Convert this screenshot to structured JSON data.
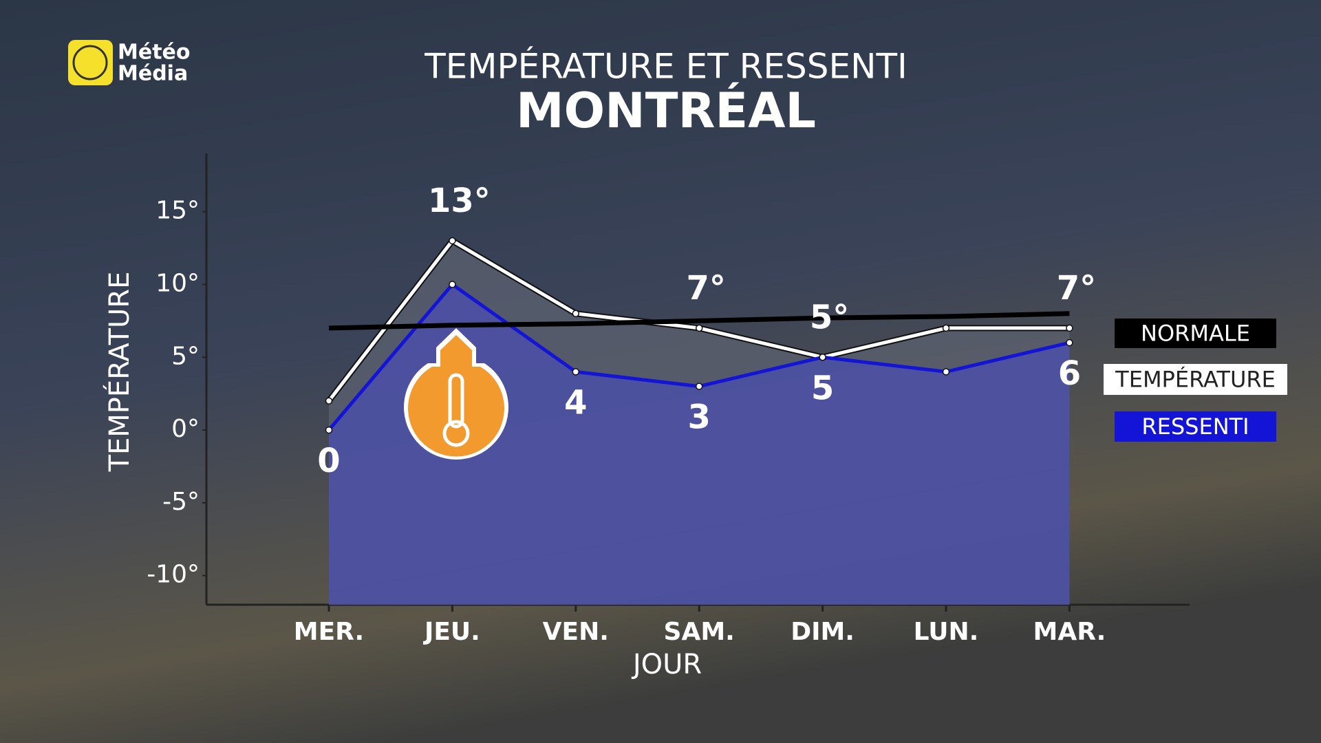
{
  "logo": {
    "line1": "Météo",
    "line2": "Média"
  },
  "chart_data": {
    "type": "line",
    "title": "TEMPÉRATURE ET RESSENTI",
    "subtitle": "MONTRÉAL",
    "y_label": "TEMPÉRATURE",
    "x_label": "JOUR",
    "categories": [
      "MER.",
      "JEU.",
      "VEN.",
      "SAM.",
      "DIM.",
      "LUN.",
      "MAR."
    ],
    "ylim": [
      -12,
      19
    ],
    "yticks": [
      {
        "value": 15,
        "label": "15°"
      },
      {
        "value": 10,
        "label": "10°"
      },
      {
        "value": 5,
        "label": "5°"
      },
      {
        "value": 0,
        "label": "0°"
      },
      {
        "value": -5,
        "label": "-5°"
      },
      {
        "value": -10,
        "label": "-10°"
      }
    ],
    "series": [
      {
        "name": "NORMALE",
        "color": "#000000",
        "values": [
          7,
          7.2,
          7.3,
          7.5,
          7.7,
          7.8,
          8
        ]
      },
      {
        "name": "TEMPÉRATURE",
        "color": "#ffffff",
        "values": [
          2,
          13,
          8,
          7,
          5,
          7,
          7
        ],
        "value_labels": [
          null,
          "13°",
          null,
          "7°",
          "5°",
          null,
          "7°"
        ]
      },
      {
        "name": "RESSENTI",
        "color": "#1414d6",
        "values": [
          0,
          10,
          4,
          3,
          5,
          4,
          6
        ],
        "value_labels": [
          "0",
          null,
          "4",
          "3",
          "5",
          null,
          "6"
        ]
      }
    ]
  }
}
